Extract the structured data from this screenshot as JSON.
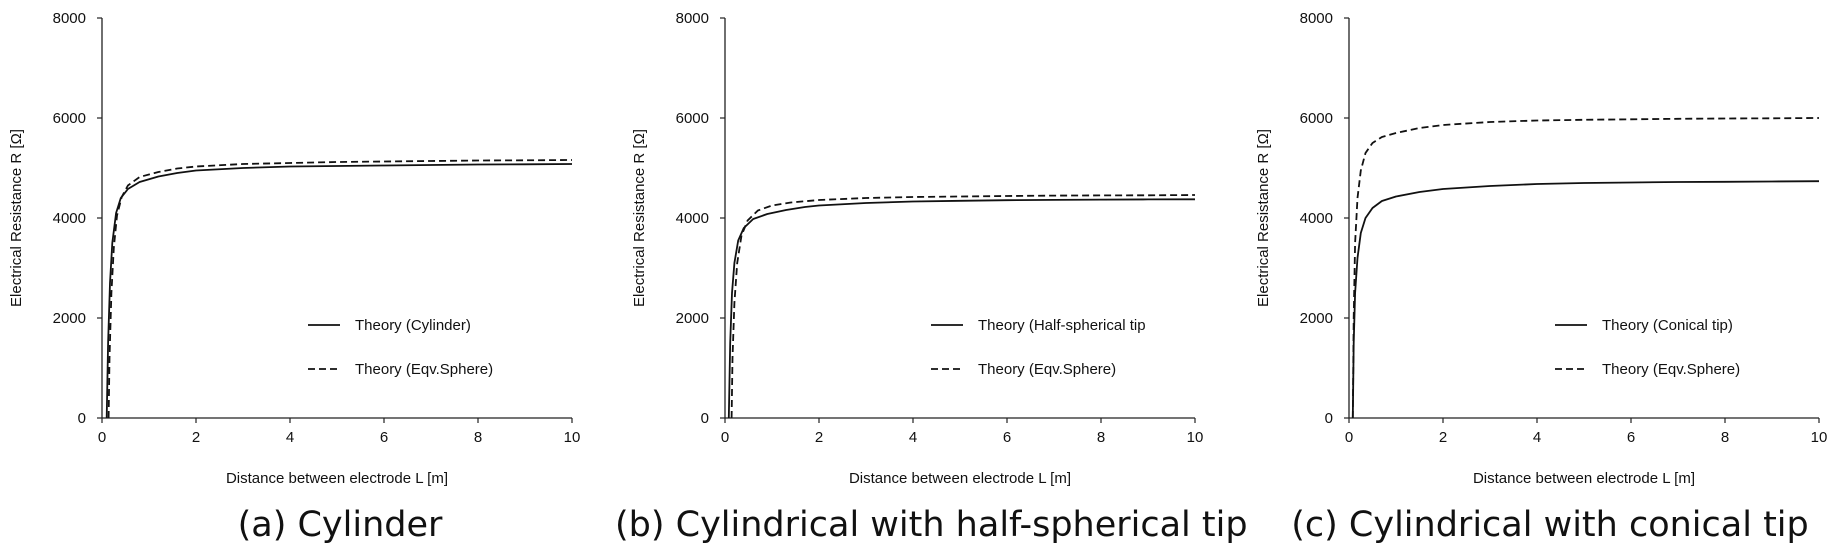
{
  "chart_data": [
    {
      "type": "line",
      "caption": "(a) Cylinder",
      "xlabel": "Distance between electrode L [m]",
      "ylabel": "Electrical Resistance R [Ω]",
      "xlim": [
        0,
        10
      ],
      "ylim": [
        0,
        8000
      ],
      "xticks": [
        "0",
        "2",
        "4",
        "6",
        "8",
        "10"
      ],
      "yticks": [
        "0",
        "2000",
        "4000",
        "6000",
        "8000"
      ],
      "grid": false,
      "legend_position": "lower-right",
      "series": [
        {
          "name": "Theory (Cylinder)",
          "style": "solid",
          "points": [
            [
              0.1,
              0
            ],
            [
              0.13,
              1500
            ],
            [
              0.17,
              2700
            ],
            [
              0.22,
              3500
            ],
            [
              0.3,
              4100
            ],
            [
              0.4,
              4400
            ],
            [
              0.55,
              4580
            ],
            [
              0.8,
              4720
            ],
            [
              1.2,
              4830
            ],
            [
              1.6,
              4900
            ],
            [
              2,
              4950
            ],
            [
              3,
              5000
            ],
            [
              4,
              5030
            ],
            [
              5,
              5040
            ],
            [
              6,
              5050
            ],
            [
              7,
              5060
            ],
            [
              8,
              5070
            ],
            [
              9,
              5075
            ],
            [
              10,
              5080
            ]
          ]
        },
        {
          "name": "Theory (Eqv.Sphere)",
          "style": "dashed",
          "points": [
            [
              0.14,
              0
            ],
            [
              0.16,
              1200
            ],
            [
              0.2,
              2500
            ],
            [
              0.25,
              3400
            ],
            [
              0.32,
              4050
            ],
            [
              0.42,
              4420
            ],
            [
              0.55,
              4650
            ],
            [
              0.8,
              4820
            ],
            [
              1.2,
              4920
            ],
            [
              1.6,
              4990
            ],
            [
              2,
              5030
            ],
            [
              3,
              5080
            ],
            [
              4,
              5100
            ],
            [
              5,
              5120
            ],
            [
              6,
              5130
            ],
            [
              7,
              5140
            ],
            [
              8,
              5150
            ],
            [
              9,
              5155
            ],
            [
              10,
              5160
            ]
          ]
        }
      ]
    },
    {
      "type": "line",
      "caption": "(b) Cylindrical with half-spherical tip",
      "xlabel": "Distance between electrode L [m]",
      "ylabel": "Electrical Resistance R [Ω]",
      "xlim": [
        0,
        10
      ],
      "ylim": [
        0,
        8000
      ],
      "xticks": [
        "0",
        "2",
        "4",
        "6",
        "8",
        "10"
      ],
      "yticks": [
        "0",
        "2000",
        "4000",
        "6000",
        "8000"
      ],
      "grid": false,
      "legend_position": "lower-right",
      "series": [
        {
          "name": "Theory (Half-spherical tip",
          "style": "solid",
          "points": [
            [
              0.08,
              0
            ],
            [
              0.11,
              1500
            ],
            [
              0.15,
              2500
            ],
            [
              0.2,
              3100
            ],
            [
              0.28,
              3550
            ],
            [
              0.4,
              3800
            ],
            [
              0.6,
              3980
            ],
            [
              0.9,
              4080
            ],
            [
              1.3,
              4160
            ],
            [
              1.7,
              4220
            ],
            [
              2,
              4250
            ],
            [
              3,
              4300
            ],
            [
              4,
              4330
            ],
            [
              5,
              4345
            ],
            [
              6,
              4355
            ],
            [
              7,
              4362
            ],
            [
              8,
              4368
            ],
            [
              9,
              4372
            ],
            [
              10,
              4375
            ]
          ]
        },
        {
          "name": "Theory (Eqv.Sphere)",
          "style": "dashed",
          "points": [
            [
              0.14,
              0
            ],
            [
              0.16,
              1200
            ],
            [
              0.2,
              2300
            ],
            [
              0.26,
              3100
            ],
            [
              0.35,
              3650
            ],
            [
              0.48,
              3950
            ],
            [
              0.7,
              4150
            ],
            [
              1,
              4250
            ],
            [
              1.4,
              4310
            ],
            [
              2,
              4360
            ],
            [
              3,
              4400
            ],
            [
              4,
              4420
            ],
            [
              5,
              4430
            ],
            [
              6,
              4440
            ],
            [
              7,
              4448
            ],
            [
              8,
              4452
            ],
            [
              9,
              4455
            ],
            [
              10,
              4460
            ]
          ]
        }
      ]
    },
    {
      "type": "line",
      "caption": "(c) Cylindrical with conical tip",
      "xlabel": "Distance between electrode L [m]",
      "ylabel": "Electrical Resistance R [Ω]",
      "xlim": [
        0,
        10
      ],
      "ylim": [
        0,
        8000
      ],
      "xticks": [
        "0",
        "2",
        "4",
        "6",
        "8",
        "10"
      ],
      "yticks": [
        "0",
        "2000",
        "4000",
        "6000",
        "8000"
      ],
      "grid": false,
      "legend_position": "lower-right",
      "series": [
        {
          "name": "Theory (Conical tip)",
          "style": "solid",
          "points": [
            [
              0.08,
              0
            ],
            [
              0.1,
              1500
            ],
            [
              0.13,
              2500
            ],
            [
              0.18,
              3200
            ],
            [
              0.25,
              3700
            ],
            [
              0.35,
              4000
            ],
            [
              0.5,
              4200
            ],
            [
              0.7,
              4340
            ],
            [
              1,
              4430
            ],
            [
              1.5,
              4520
            ],
            [
              2,
              4580
            ],
            [
              3,
              4640
            ],
            [
              4,
              4680
            ],
            [
              5,
              4700
            ],
            [
              6,
              4710
            ],
            [
              7,
              4720
            ],
            [
              8,
              4725
            ],
            [
              9,
              4730
            ],
            [
              10,
              4735
            ]
          ]
        },
        {
          "name": "Theory (Eqv.Sphere)",
          "style": "dashed",
          "points": [
            [
              0.08,
              0
            ],
            [
              0.1,
              2000
            ],
            [
              0.13,
              3500
            ],
            [
              0.18,
              4400
            ],
            [
              0.25,
              4950
            ],
            [
              0.35,
              5300
            ],
            [
              0.5,
              5500
            ],
            [
              0.7,
              5620
            ],
            [
              1,
              5700
            ],
            [
              1.5,
              5800
            ],
            [
              2,
              5860
            ],
            [
              3,
              5920
            ],
            [
              4,
              5950
            ],
            [
              5,
              5965
            ],
            [
              6,
              5975
            ],
            [
              7,
              5985
            ],
            [
              8,
              5990
            ],
            [
              9,
              5995
            ],
            [
              10,
              6000
            ]
          ]
        }
      ]
    }
  ]
}
